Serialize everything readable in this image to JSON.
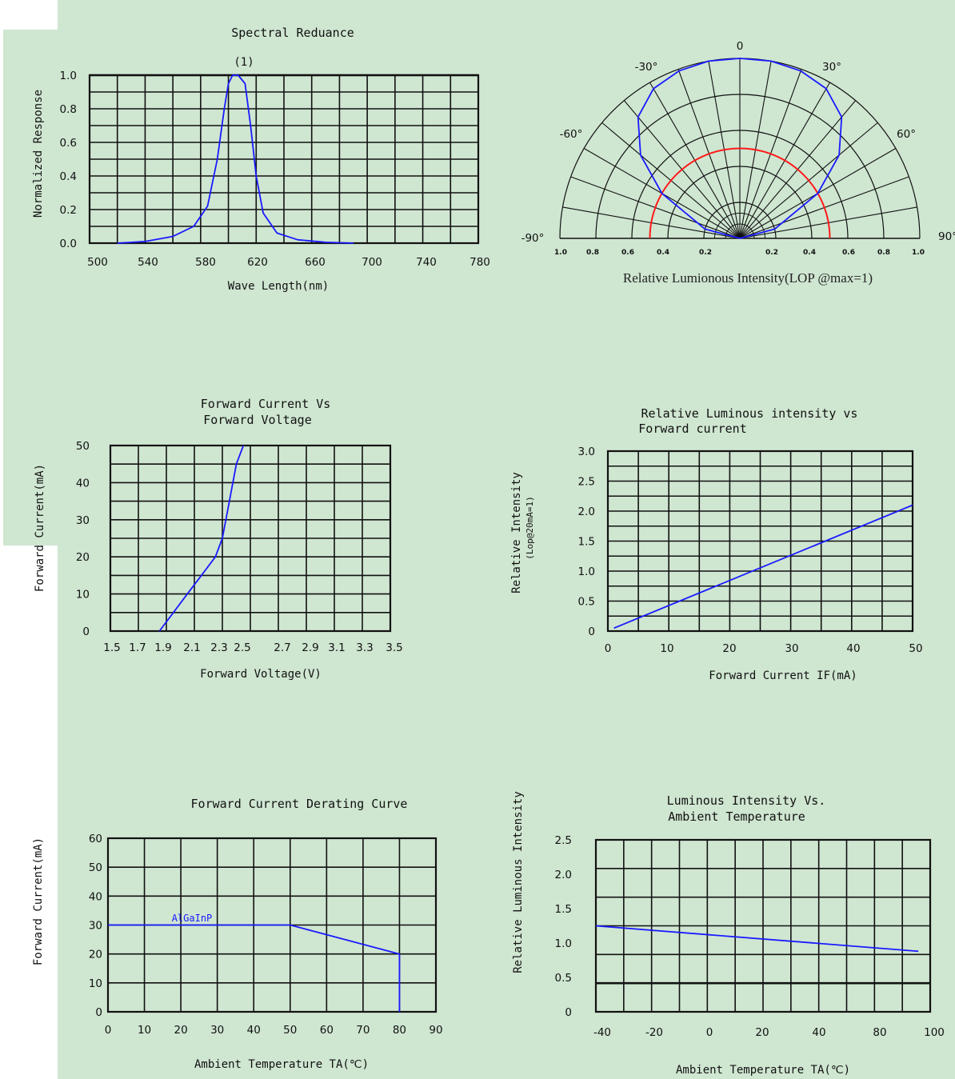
{
  "chart_data": [
    {
      "id": "spectral",
      "type": "line",
      "title": "Spectral   Reduance",
      "xlabel": "Wave Length(nm)",
      "ylabel": "Normalized   Response",
      "xlim": [
        500,
        780
      ],
      "ylim": [
        0,
        1.0
      ],
      "x_ticks": [
        "500",
        "540",
        "580",
        "620",
        "660",
        "700",
        "740",
        "780"
      ],
      "y_ticks": [
        "0.0",
        "0.2",
        "0.4",
        "0.6",
        "0.8",
        "1.0"
      ],
      "annotation": "(1)",
      "colors": {
        "curve": "#1a1aff"
      },
      "series": [
        {
          "x": [
            520,
            540,
            560,
            575,
            585,
            592,
            597,
            600,
            603,
            607,
            612,
            616,
            620,
            625,
            635,
            650,
            670,
            690
          ],
          "y": [
            0,
            0.01,
            0.04,
            0.1,
            0.22,
            0.5,
            0.8,
            0.95,
            1.0,
            1.0,
            0.95,
            0.7,
            0.4,
            0.18,
            0.06,
            0.02,
            0.005,
            0
          ]
        }
      ]
    },
    {
      "id": "polar",
      "type": "polar",
      "xlabel": "Relative Lumionous Intensity(LOP @max=1)",
      "angle_labels": [
        "0",
        "-30°",
        "30°",
        "-60°",
        "60°",
        "-90°",
        "90°"
      ],
      "radial_ticks_left": [
        "1.0",
        "0.8",
        "0.6",
        "0.4",
        "0.2"
      ],
      "radial_ticks_right": [
        "0.2",
        "0.4",
        "0.6",
        "0.8",
        "1.0"
      ],
      "colors": {
        "pattern": "#1a1aff",
        "half_circle": "#ff1a1a"
      },
      "series": [
        {
          "angle_deg": [
            -90,
            -75,
            -60,
            -50,
            -40,
            -30,
            -20,
            -10,
            0,
            10,
            20,
            30,
            40,
            50,
            60,
            75,
            90
          ],
          "intensity": [
            0,
            0.2,
            0.5,
            0.72,
            0.88,
            0.96,
            0.99,
            1.0,
            1.0,
            1.0,
            0.99,
            0.96,
            0.88,
            0.72,
            0.5,
            0.2,
            0
          ]
        }
      ],
      "reference_radius": 0.5
    },
    {
      "id": "if_vf",
      "type": "line",
      "title": "Forward Current Vs",
      "title2": "Forward Voltage",
      "xlabel": "Forward Voltage(V)",
      "ylabel": "Forward Current(mA)",
      "xlim": [
        1.5,
        3.5
      ],
      "ylim": [
        0,
        50
      ],
      "x_ticks": [
        "1.5",
        "1.7",
        "1.9",
        "2.1",
        "2.3",
        "2.5",
        "2.7",
        "2.9",
        "3.1",
        "3.3",
        "3.5"
      ],
      "y_ticks": [
        "0",
        "10",
        "20",
        "30",
        "40",
        "50"
      ],
      "colors": {
        "curve": "#1a1aff"
      },
      "series": [
        {
          "x": [
            1.85,
            1.95,
            2.05,
            2.15,
            2.25,
            2.3,
            2.35,
            2.4,
            2.45
          ],
          "y": [
            0,
            5,
            10,
            15,
            20,
            25,
            35,
            45,
            50
          ]
        }
      ]
    },
    {
      "id": "iv_if",
      "type": "line",
      "title": "Relative Luminous intensity vs",
      "title2": "Forward current",
      "xlabel": "Forward Current IF(mA)",
      "ylabel": "Relative Intensity",
      "ylabel2": "(Lop@20mA=1)",
      "xlim": [
        0,
        50
      ],
      "ylim": [
        0,
        3.0
      ],
      "x_ticks": [
        "0",
        "10",
        "20",
        "30",
        "40",
        "50"
      ],
      "y_ticks": [
        "0",
        "0.5",
        "1.0",
        "1.5",
        "2.0",
        "2.5",
        "3.0"
      ],
      "colors": {
        "curve": "#1a1aff"
      },
      "series": [
        {
          "x": [
            1,
            50
          ],
          "y": [
            0.05,
            2.1
          ]
        }
      ]
    },
    {
      "id": "derating",
      "type": "line",
      "title": "Forward Current Derating Curve",
      "xlabel": "Ambient Temperature TA(℃)",
      "ylabel": "Forward Current(mA)",
      "xlim": [
        0,
        90
      ],
      "ylim": [
        0,
        60
      ],
      "x_ticks": [
        "0",
        "10",
        "20",
        "30",
        "40",
        "50",
        "60",
        "70",
        "80",
        "90"
      ],
      "y_ticks": [
        "0",
        "10",
        "20",
        "30",
        "40",
        "50",
        "60"
      ],
      "annotation": "AlGaInP",
      "colors": {
        "curve": "#1a1aff"
      },
      "series": [
        {
          "x": [
            0,
            50,
            80,
            80
          ],
          "y": [
            30,
            30,
            20,
            0
          ]
        }
      ]
    },
    {
      "id": "iv_ta",
      "type": "line",
      "title": "Luminous Intensity Vs.",
      "title2": "Ambient Temperature",
      "xlabel": "Ambient Temperature TA(℃)",
      "ylabel": "Relative Luminous Intensity",
      "xlim": [
        -40,
        100
      ],
      "ylim": [
        0,
        2.5
      ],
      "x_ticks": [
        "-40",
        "-20",
        "0",
        "20",
        "40",
        "80",
        "100"
      ],
      "y_ticks": [
        "0",
        "0.5",
        "1.0",
        "1.5",
        "2.0",
        "2.5"
      ],
      "colors": {
        "curve": "#1a1aff"
      },
      "series": [
        {
          "x": [
            -40,
            95
          ],
          "y": [
            1.25,
            0.88
          ]
        }
      ]
    }
  ]
}
